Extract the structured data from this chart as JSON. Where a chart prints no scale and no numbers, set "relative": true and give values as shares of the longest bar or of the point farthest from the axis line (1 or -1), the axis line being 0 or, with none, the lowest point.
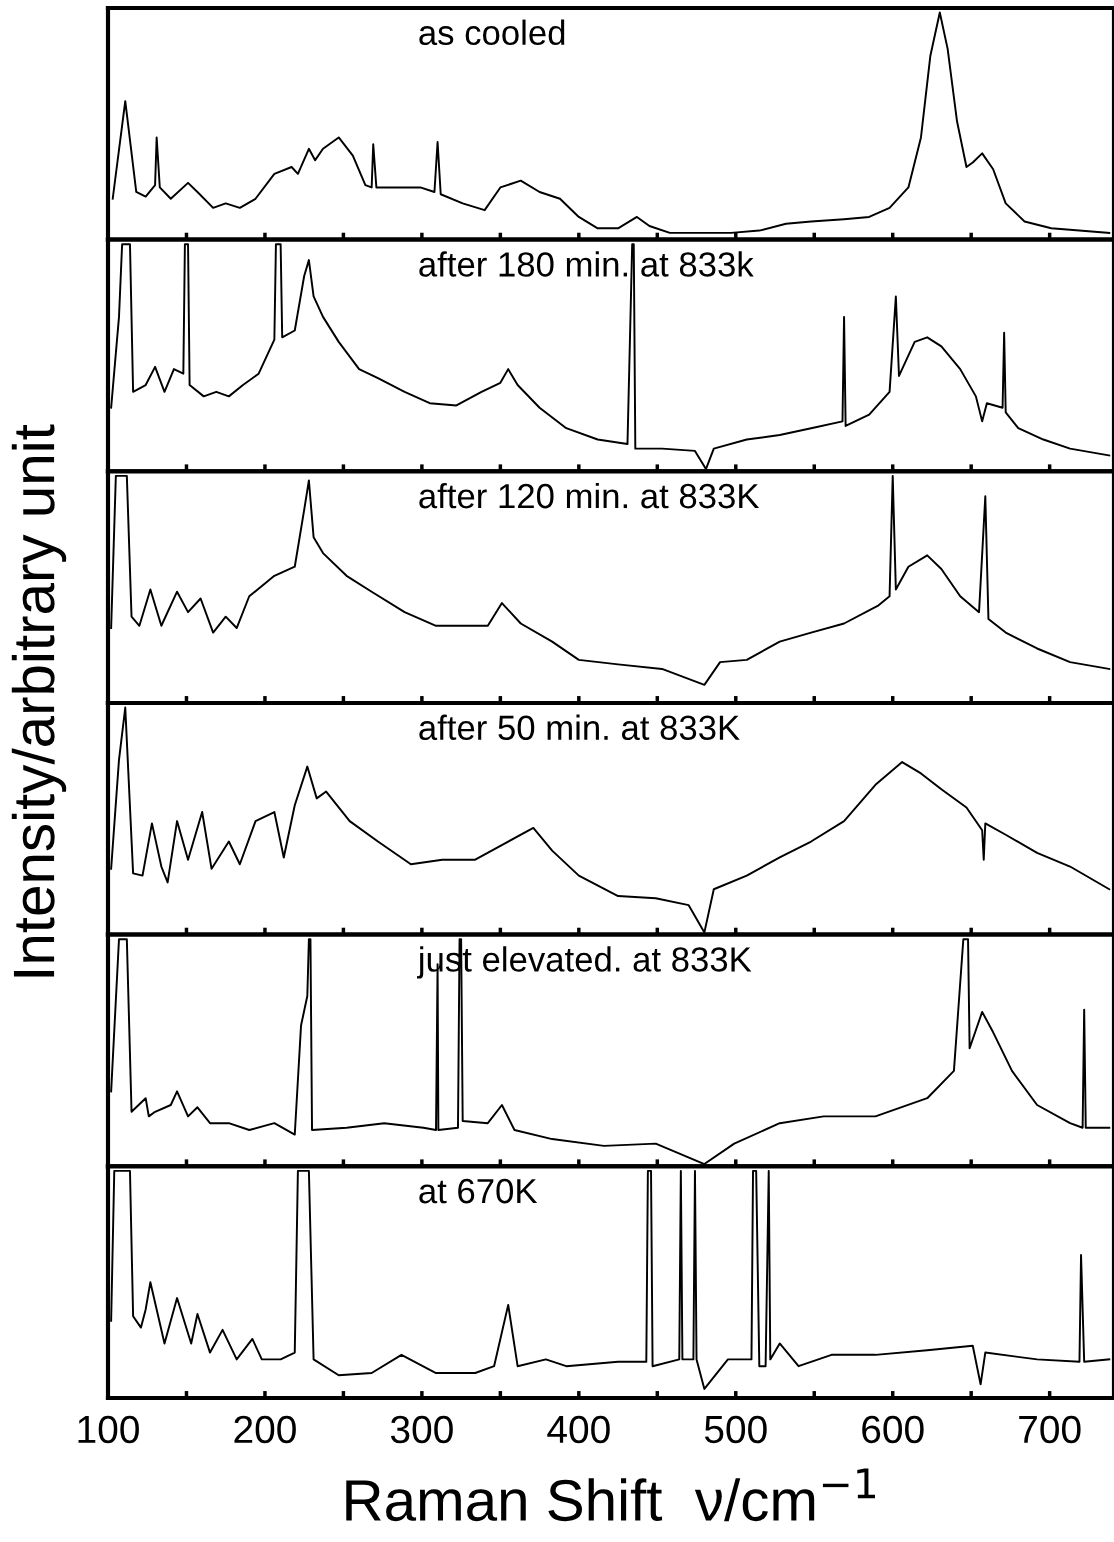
{
  "chart_data": [
    {
      "type": "line",
      "title": "as cooled",
      "ylabel": "Intensity/arbitrary unit",
      "relative": true,
      "xlim": [
        100,
        741
      ],
      "tick_labels": false,
      "line_style": "solid",
      "marker": "none",
      "xticks": [
        {
          "value": 100,
          "label": null
        },
        {
          "value": 150,
          "label": null
        },
        {
          "value": 200,
          "label": null
        },
        {
          "value": 250,
          "label": null
        },
        {
          "value": 300,
          "label": null
        },
        {
          "value": 350,
          "label": null
        },
        {
          "value": 400,
          "label": null
        },
        {
          "value": 450,
          "label": null
        },
        {
          "value": 500,
          "label": null
        },
        {
          "value": 550,
          "label": null
        },
        {
          "value": 600,
          "label": null
        },
        {
          "value": 650,
          "label": null
        },
        {
          "value": 700,
          "label": null
        }
      ],
      "series": [
        {
          "color": "#000000",
          "x": [
            103,
            111,
            118,
            124,
            130,
            131,
            133,
            140,
            151,
            157,
            167,
            175,
            184,
            194,
            206,
            217,
            221,
            228,
            232,
            237,
            247,
            256,
            264,
            268,
            269,
            271,
            285,
            299,
            308,
            310,
            312,
            326,
            340,
            350,
            363,
            375,
            388,
            400,
            412,
            425,
            437,
            445,
            458,
            474,
            497,
            515,
            532,
            548,
            569,
            585,
            598,
            610,
            618,
            624,
            630,
            635,
            641,
            647,
            651,
            657,
            664,
            672,
            684,
            701,
            738
          ],
          "values": [
            0.18,
            0.61,
            0.21,
            0.19,
            0.24,
            0.45,
            0.23,
            0.18,
            0.25,
            0.21,
            0.14,
            0.16,
            0.14,
            0.18,
            0.29,
            0.32,
            0.29,
            0.4,
            0.35,
            0.4,
            0.45,
            0.37,
            0.24,
            0.23,
            0.42,
            0.23,
            0.23,
            0.23,
            0.21,
            0.43,
            0.2,
            0.16,
            0.13,
            0.23,
            0.26,
            0.21,
            0.18,
            0.1,
            0.05,
            0.05,
            0.1,
            0.06,
            0.03,
            0.03,
            0.03,
            0.04,
            0.07,
            0.08,
            0.09,
            0.1,
            0.14,
            0.23,
            0.45,
            0.81,
            1.0,
            0.84,
            0.52,
            0.32,
            0.34,
            0.38,
            0.31,
            0.16,
            0.08,
            0.05,
            0.03
          ]
        }
      ]
    },
    {
      "type": "line",
      "title": "after 180 min. at 833k",
      "relative": true,
      "xlim": [
        100,
        741
      ],
      "tick_labels": false,
      "line_style": "solid",
      "marker": "none",
      "xticks": [
        {
          "value": 100,
          "label": null
        },
        {
          "value": 150,
          "label": null
        },
        {
          "value": 200,
          "label": null
        },
        {
          "value": 250,
          "label": null
        },
        {
          "value": 300,
          "label": null
        },
        {
          "value": 350,
          "label": null
        },
        {
          "value": 400,
          "label": null
        },
        {
          "value": 450,
          "label": null
        },
        {
          "value": 500,
          "label": null
        },
        {
          "value": 550,
          "label": null
        },
        {
          "value": 600,
          "label": null
        },
        {
          "value": 650,
          "label": null
        },
        {
          "value": 700,
          "label": null
        }
      ],
      "series": [
        {
          "color": "#000000",
          "x": [
            102,
            107,
            109,
            114,
            116,
            124,
            130,
            136,
            142,
            148,
            149,
            151,
            152,
            161,
            169,
            177,
            186,
            196,
            206,
            207,
            210,
            211,
            219,
            225,
            228,
            231,
            237,
            247,
            260,
            272,
            289,
            305,
            322,
            338,
            350,
            355,
            361,
            375,
            392,
            412,
            431,
            434,
            435,
            436,
            453,
            474,
            481,
            486,
            507,
            528,
            548,
            568,
            569,
            570,
            585,
            598,
            602,
            604,
            614,
            622,
            631,
            643,
            653,
            657,
            660,
            670,
            671,
            672,
            680,
            696,
            713,
            738
          ],
          "values": [
            0.28,
            0.68,
            1,
            1,
            0.35,
            0.38,
            0.46,
            0.35,
            0.45,
            0.43,
            1,
            1,
            0.38,
            0.33,
            0.35,
            0.33,
            0.38,
            0.43,
            0.58,
            1,
            1,
            0.59,
            0.62,
            0.86,
            0.93,
            0.77,
            0.68,
            0.57,
            0.45,
            0.41,
            0.35,
            0.3,
            0.29,
            0.35,
            0.39,
            0.45,
            0.38,
            0.28,
            0.19,
            0.14,
            0.12,
            1,
            1,
            0.1,
            0.1,
            0.09,
            0.01,
            0.1,
            0.14,
            0.16,
            0.19,
            0.22,
            0.68,
            0.2,
            0.25,
            0.35,
            0.77,
            0.42,
            0.57,
            0.59,
            0.55,
            0.45,
            0.33,
            0.22,
            0.3,
            0.28,
            0.61,
            0.26,
            0.19,
            0.14,
            0.1,
            0.07
          ]
        }
      ]
    },
    {
      "type": "line",
      "title": "after 120 min. at 833K",
      "relative": true,
      "xlim": [
        100,
        741
      ],
      "tick_labels": false,
      "line_style": "solid",
      "marker": "none",
      "xticks": [
        {
          "value": 100,
          "label": null
        },
        {
          "value": 150,
          "label": null
        },
        {
          "value": 200,
          "label": null
        },
        {
          "value": 250,
          "label": null
        },
        {
          "value": 300,
          "label": null
        },
        {
          "value": 350,
          "label": null
        },
        {
          "value": 400,
          "label": null
        },
        {
          "value": 450,
          "label": null
        },
        {
          "value": 500,
          "label": null
        },
        {
          "value": 550,
          "label": null
        },
        {
          "value": 600,
          "label": null
        },
        {
          "value": 650,
          "label": null
        },
        {
          "value": 700,
          "label": null
        }
      ],
      "series": [
        {
          "color": "#000000",
          "x": [
            102,
            105,
            112,
            115,
            120,
            127,
            134,
            144,
            151,
            159,
            167,
            175,
            182,
            190,
            206,
            219,
            225,
            228,
            231,
            237,
            252,
            268,
            289,
            309,
            342,
            351,
            363,
            383,
            400,
            425,
            453,
            480,
            490,
            507,
            528,
            548,
            569,
            591,
            598,
            600,
            602,
            610,
            622,
            631,
            643,
            655,
            659,
            661,
            672,
            692,
            713,
            738
          ],
          "values": [
            0.33,
            1,
            1,
            0.38,
            0.34,
            0.5,
            0.34,
            0.49,
            0.4,
            0.46,
            0.31,
            0.38,
            0.33,
            0.47,
            0.56,
            0.6,
            0.85,
            0.98,
            0.73,
            0.66,
            0.56,
            0.49,
            0.4,
            0.34,
            0.34,
            0.44,
            0.35,
            0.27,
            0.19,
            0.17,
            0.15,
            0.08,
            0.18,
            0.19,
            0.27,
            0.31,
            0.35,
            0.43,
            0.47,
            1,
            0.5,
            0.6,
            0.65,
            0.59,
            0.47,
            0.4,
            0.91,
            0.37,
            0.31,
            0.24,
            0.18,
            0.15
          ]
        }
      ]
    },
    {
      "type": "line",
      "title": "after 50 min. at 833K",
      "relative": true,
      "xlim": [
        100,
        741
      ],
      "tick_labels": false,
      "line_style": "solid",
      "marker": "none",
      "xticks": [
        {
          "value": 100,
          "label": null
        },
        {
          "value": 150,
          "label": null
        },
        {
          "value": 200,
          "label": null
        },
        {
          "value": 250,
          "label": null
        },
        {
          "value": 300,
          "label": null
        },
        {
          "value": 350,
          "label": null
        },
        {
          "value": 400,
          "label": null
        },
        {
          "value": 450,
          "label": null
        },
        {
          "value": 500,
          "label": null
        },
        {
          "value": 550,
          "label": null
        },
        {
          "value": 600,
          "label": null
        },
        {
          "value": 650,
          "label": null
        },
        {
          "value": 700,
          "label": null
        }
      ],
      "series": [
        {
          "color": "#000000",
          "x": [
            102,
            107,
            111,
            116,
            122,
            128,
            134,
            138,
            144,
            151,
            160,
            166,
            177,
            184,
            194,
            206,
            212,
            219,
            227,
            233,
            239,
            254,
            272,
            293,
            313,
            334,
            355,
            371,
            383,
            400,
            425,
            449,
            470,
            480,
            486,
            507,
            528,
            548,
            569,
            589,
            606,
            618,
            631,
            647,
            657,
            658,
            659,
            672,
            692,
            713,
            738
          ],
          "values": [
            0.29,
            0.77,
            1,
            0.27,
            0.26,
            0.49,
            0.3,
            0.23,
            0.5,
            0.33,
            0.54,
            0.29,
            0.41,
            0.31,
            0.5,
            0.54,
            0.34,
            0.57,
            0.74,
            0.6,
            0.63,
            0.5,
            0.41,
            0.31,
            0.33,
            0.33,
            0.41,
            0.47,
            0.37,
            0.26,
            0.17,
            0.16,
            0.13,
            0.01,
            0.2,
            0.26,
            0.34,
            0.41,
            0.5,
            0.66,
            0.76,
            0.71,
            0.64,
            0.56,
            0.46,
            0.33,
            0.49,
            0.44,
            0.36,
            0.3,
            0.2
          ]
        }
      ]
    },
    {
      "type": "line",
      "title": "just elevated. at 833K",
      "relative": true,
      "xlim": [
        100,
        741
      ],
      "tick_labels": false,
      "line_style": "solid",
      "marker": "none",
      "xticks": [
        {
          "value": 100,
          "label": null
        },
        {
          "value": 150,
          "label": null
        },
        {
          "value": 200,
          "label": null
        },
        {
          "value": 250,
          "label": null
        },
        {
          "value": 300,
          "label": null
        },
        {
          "value": 350,
          "label": null
        },
        {
          "value": 400,
          "label": null
        },
        {
          "value": 450,
          "label": null
        },
        {
          "value": 500,
          "label": null
        },
        {
          "value": 550,
          "label": null
        },
        {
          "value": 600,
          "label": null
        },
        {
          "value": 650,
          "label": null
        },
        {
          "value": 700,
          "label": null
        }
      ],
      "series": [
        {
          "color": "#000000",
          "x": [
            102,
            107,
            112,
            115,
            124,
            126,
            130,
            140,
            144,
            151,
            157,
            165,
            177,
            190,
            206,
            219,
            223,
            227,
            228,
            229,
            230,
            252,
            276,
            301,
            309,
            310,
            310.5,
            323,
            324,
            325,
            326,
            342,
            351,
            359,
            383,
            416,
            449,
            480,
            499,
            528,
            556,
            589,
            622,
            639,
            645,
            648,
            649,
            657,
            664,
            676,
            692,
            713,
            721,
            722,
            723,
            738
          ],
          "values": [
            0.33,
            1,
            1,
            0.24,
            0.3,
            0.22,
            0.24,
            0.27,
            0.33,
            0.22,
            0.26,
            0.19,
            0.19,
            0.16,
            0.19,
            0.14,
            0.62,
            0.75,
            1,
            1,
            0.16,
            0.17,
            0.19,
            0.17,
            0.16,
            0.89,
            0.16,
            0.17,
            1,
            1,
            0.2,
            0.19,
            0.27,
            0.16,
            0.12,
            0.09,
            0.1,
            0.01,
            0.1,
            0.19,
            0.22,
            0.22,
            0.3,
            0.42,
            1,
            1,
            0.52,
            0.68,
            0.59,
            0.42,
            0.27,
            0.19,
            0.17,
            0.69,
            0.17,
            0.17
          ]
        }
      ]
    },
    {
      "type": "line",
      "title": "at 670K",
      "xlabel": "Raman Shift  ν/cm$^{−1}$",
      "relative": true,
      "xlim": [
        100,
        741
      ],
      "tick_labels": "x",
      "line_style": "solid",
      "marker": "none",
      "xticks": [
        100,
        {
          "value": 150,
          "label": null
        },
        200,
        {
          "value": 250,
          "label": null
        },
        300,
        {
          "value": 350,
          "label": null
        },
        400,
        {
          "value": 450,
          "label": null
        },
        500,
        {
          "value": 550,
          "label": null
        },
        600,
        {
          "value": 650,
          "label": null
        },
        700
      ],
      "series": [
        {
          "color": "#000000",
          "x": [
            102,
            104,
            114,
            116,
            121,
            124,
            127,
            136,
            144,
            153,
            157,
            165,
            173,
            182,
            192,
            198,
            210,
            219,
            221,
            228,
            231,
            247,
            268,
            287,
            309,
            334,
            346,
            355,
            361,
            379,
            392,
            425,
            443,
            444,
            446,
            447,
            464,
            465,
            466,
            473,
            474,
            475,
            480,
            495,
            510,
            511,
            513,
            515,
            519,
            521,
            522,
            528,
            540,
            561,
            589,
            622,
            651,
            656,
            659,
            692,
            719,
            720,
            722,
            738
          ],
          "values": [
            0.34,
            1,
            1,
            0.36,
            0.31,
            0.39,
            0.51,
            0.24,
            0.44,
            0.24,
            0.37,
            0.2,
            0.3,
            0.17,
            0.26,
            0.17,
            0.17,
            0.2,
            1,
            1,
            0.17,
            0.1,
            0.11,
            0.19,
            0.11,
            0.11,
            0.14,
            0.41,
            0.14,
            0.17,
            0.14,
            0.16,
            0.16,
            1,
            1,
            0.14,
            0.17,
            1,
            0.17,
            0.17,
            1,
            0.17,
            0.04,
            0.17,
            0.17,
            1,
            1,
            0.14,
            0.14,
            1,
            0.17,
            0.24,
            0.14,
            0.19,
            0.19,
            0.21,
            0.23,
            0.06,
            0.2,
            0.17,
            0.16,
            0.63,
            0.16,
            0.17
          ]
        }
      ]
    }
  ]
}
